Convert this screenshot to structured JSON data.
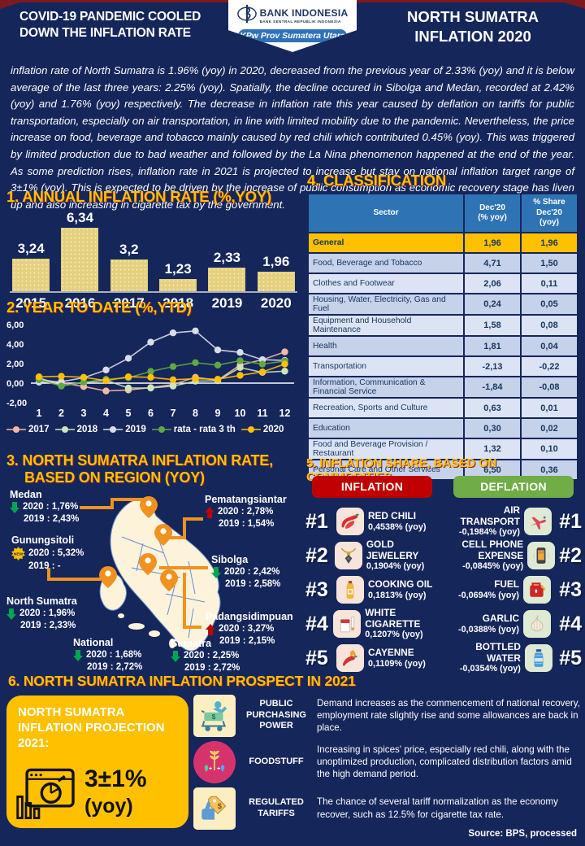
{
  "colors": {
    "background_navy": "#15265b",
    "accent_gold": "#ffc000",
    "inflation_red": "#c00000",
    "deflation_green": "#70ad47",
    "pin_orange": "#f0921e",
    "table_header_blue": "#2e74b5"
  },
  "header": {
    "left_title": "COVID-19 PANDEMIC COOLED DOWN THE INFLATION RATE",
    "bank_name": "BANK INDONESIA",
    "bank_subtitle": "BANK SENTRAL REPUBLIK INDONESIA",
    "office_badge": "KPw Prov Sumatera Utara",
    "right_title": "NORTH SUMATRA INFLATION 2020"
  },
  "intro": "inflation rate of North Sumatra is 1.96% (yoy) in 2020, decreased from the previous year of 2.33% (yoy) and it is below average of the last three years: 2.25% (yoy). Spatially, the decline occured in Sibolga and Medan, recorded at 2.42% (yoy) and 1.76% (yoy) respectively. The decrease in inflation rate this year caused by deflation on tariffs for public transportation, especially on air transportation, in line with limited mobility due to the pandemic. Nevertheless, the price increase on food, beverage and tobacco mainly caused by red chili which contributed 0.45% (yoy). This was triggered by limited production due to bad weather and followed by the La Nina phenomenon happened at the end of the year. As some prediction rises, inflation rate in 2021 is projected to increase but stay on national inflation target range of 3±1% (yoy). This is expected to be driven by the increase of public consumption as economic recovery stage has liven up and also increasing in cigarette tax by the government.",
  "sections": {
    "s1": {
      "title": "1. ANNUAL INFLATION RATE  (%,YOY)"
    },
    "s2": {
      "title": "2. YEAR TO DATE (%,YTD)"
    },
    "s3": {
      "title_line1": "3. NORTH SUMATRA INFLATION  RATE,",
      "title_line2": "BASED ON REGION (YOY)"
    },
    "s4": {
      "title": "4. CLASSIFICATION"
    },
    "s5": {
      "title": "5. INFLATION SHARE, BASED ON COMMODITIES"
    },
    "s6": {
      "title": "6. NORTH SUMATRA INFLATION PROSPECT IN 2021"
    }
  },
  "chart_data": [
    {
      "type": "bar",
      "title": "1. ANNUAL INFLATION RATE (%,YOY)",
      "categories": [
        "2015",
        "2016",
        "2017",
        "2018",
        "2019",
        "2020"
      ],
      "values": [
        3.24,
        6.34,
        3.2,
        1.23,
        2.33,
        1.96
      ],
      "labels": [
        "3,24",
        "6,34",
        "3,2",
        "1,23",
        "2,33",
        "1,96"
      ],
      "ylim": [
        0,
        7
      ]
    },
    {
      "type": "line",
      "title": "2. YEAR TO DATE (%,YTD)",
      "x": [
        "1",
        "2",
        "3",
        "4",
        "5",
        "6",
        "7",
        "8",
        "9",
        "10",
        "11",
        "12"
      ],
      "ylim": [
        -2,
        6
      ],
      "yticks": [
        6,
        4,
        2,
        0,
        -2
      ],
      "ytick_labels": [
        "6,00",
        "4,00",
        "2,00",
        "0,00",
        "-2,00"
      ],
      "legend_position": "bottom",
      "grid": false,
      "series": [
        {
          "name": "2017",
          "color": "#f4b8a4",
          "values": [
            0.4,
            0.05,
            -0.35,
            -0.8,
            -0.7,
            -0.45,
            -0.15,
            0.6,
            0.3,
            1.85,
            2.4,
            3.2
          ]
        },
        {
          "name": "2018",
          "color": "#cde6b9",
          "values": [
            0.55,
            -0.25,
            0.05,
            0.3,
            -0.5,
            -0.5,
            -0.3,
            0.2,
            0.25,
            1.6,
            1.1,
            1.23
          ]
        },
        {
          "name": "2019",
          "color": "#d9dde9",
          "values": [
            0.1,
            0.15,
            0.55,
            1.35,
            2.55,
            4.2,
            5.15,
            5.35,
            3.4,
            3.15,
            2.4,
            2.33
          ]
        },
        {
          "name": "rata - rata 3 th",
          "color": "#61a744",
          "values": [
            0.35,
            -0.3,
            0.1,
            0.4,
            0.55,
            1.2,
            1.7,
            2.1,
            1.85,
            2.3,
            1.95,
            2.25
          ]
        },
        {
          "name": "2020",
          "color": "#ffc000",
          "values": [
            0.65,
            0.7,
            0.6,
            0.25,
            0.65,
            0.6,
            0.35,
            0.45,
            0.4,
            0.8,
            1.15,
            1.96
          ]
        }
      ]
    }
  ],
  "classification": {
    "columns": [
      "Sector",
      "Dec'20\n(% yoy)",
      "% Share\nDec'20\n(yoy)"
    ],
    "rows": [
      {
        "sector": "General",
        "yoy": "1,96",
        "share": "1,96"
      },
      {
        "sector": "Food, Beverage and Tobacco",
        "yoy": "4,71",
        "share": "1,50"
      },
      {
        "sector": "Clothes and Footwear",
        "yoy": "2,06",
        "share": "0,11"
      },
      {
        "sector": "Housing, Water, Electricity, Gas and Fuel",
        "yoy": "0,24",
        "share": "0,05"
      },
      {
        "sector": "Equipment and Household Maintenance",
        "yoy": "1,58",
        "share": "0,08"
      },
      {
        "sector": "Health",
        "yoy": "1,81",
        "share": "0,04"
      },
      {
        "sector": "Transportation",
        "yoy": "-2,13",
        "share": "-0,22"
      },
      {
        "sector": "Information, Communication & Financial Service",
        "yoy": "-1,84",
        "share": "-0,08"
      },
      {
        "sector": "Recreation, Sports and Culture",
        "yoy": "0,63",
        "share": "0,01"
      },
      {
        "sector": "Education",
        "yoy": "0,30",
        "share": "0,02"
      },
      {
        "sector": "Food and Beverage Provision / Restaurant",
        "yoy": "1,32",
        "share": "0,10"
      },
      {
        "sector": "Personal Care and Other Services",
        "yoy": "6,50",
        "share": "0,36"
      }
    ]
  },
  "regions": [
    {
      "name": "Medan",
      "direction": "down",
      "line1": "2020 : 1,76%",
      "line2": "2019 : 2,43%"
    },
    {
      "name": "Pematangsiantar",
      "direction": "up",
      "line1": "2020 : 2,78%",
      "line2": "2019 : 1,54%"
    },
    {
      "name": "Gunungsitoli",
      "direction": "new",
      "line1": "2020 : 5,32%",
      "line2": "2019 : -"
    },
    {
      "name": "Sibolga",
      "direction": "down",
      "line1": "2020 : 2,42%",
      "line2": "2019 : 2,58%"
    },
    {
      "name": "North Sumatra",
      "direction": "down",
      "line1": "2020 : 1,96%",
      "line2": "2019 : 2,33%"
    },
    {
      "name": "Padangsidimpuan",
      "direction": "up",
      "line1": "2020 : 3,27%",
      "line2": "2019 : 2,15%"
    },
    {
      "name": "National",
      "direction": "down",
      "line1": "2020 : 1,68%",
      "line2": "2019 : 2,72%"
    },
    {
      "name": "Sumatra",
      "direction": "down",
      "line1": "2020 : 2,25%",
      "line2": "2019 : 2,72%"
    }
  ],
  "commodities": {
    "inflation_label": "INFLATION",
    "deflation_label": "DEFLATION",
    "inflation": [
      {
        "rank": "#1",
        "name": "RED CHILI",
        "value": "0,4538% (yoy)",
        "icon": "red-chili-icon"
      },
      {
        "rank": "#2",
        "name": "GOLD JEWELERY",
        "value": "0,1904% (yoy)",
        "icon": "gold-jewelery-icon"
      },
      {
        "rank": "#3",
        "name": "COOKING OIL",
        "value": "0,1813% (yoy)",
        "icon": "cooking-oil-icon"
      },
      {
        "rank": "#4",
        "name": "WHITE CIGARETTE",
        "value": "0,1207% (yoy)",
        "icon": "white-cigarette-icon"
      },
      {
        "rank": "#5",
        "name": "CAYENNE",
        "value": "0,1109% (yoy)",
        "icon": "cayenne-icon"
      }
    ],
    "deflation": [
      {
        "rank": "#1",
        "name": "AIR TRANSPORT",
        "value": "-0,1984% (yoy)",
        "icon": "air-transport-icon"
      },
      {
        "rank": "#2",
        "name": "CELL PHONE EXPENSE",
        "value": "-0,0845% (yoy)",
        "icon": "cell-phone-icon"
      },
      {
        "rank": "#3",
        "name": "FUEL",
        "value": "-0,0694% (yoy)",
        "icon": "fuel-icon"
      },
      {
        "rank": "#4",
        "name": "GARLIC",
        "value": "-0,0388% (yoy)",
        "icon": "garlic-icon"
      },
      {
        "rank": "#5",
        "name": "BOTTLED WATER",
        "value": "-0,0354% (yoy)",
        "icon": "bottled-water-icon"
      }
    ]
  },
  "projection": {
    "title": "NORTH SUMATRA\nINFLATION PROJECTION\n2021:",
    "value": "3±1%",
    "unit": "(yoy)"
  },
  "prospects": [
    {
      "label": "PUBLIC PURCHASING POWER",
      "text": "Demand increases as the commencement of national recovery, employment rate slightly rise and some allowances are back in place."
    },
    {
      "label": "FOODSTUFF",
      "text": "Increasing in spices' price, especially red chili, along with the unoptimized production, complicated distribution factors amid the high demand period."
    },
    {
      "label": "REGULATED TARIFFS",
      "text": "The chance of several tariff normalization as the economy recover, such as 12.5% for cigarette tax rate."
    }
  ],
  "source": "Source: BPS, processed"
}
